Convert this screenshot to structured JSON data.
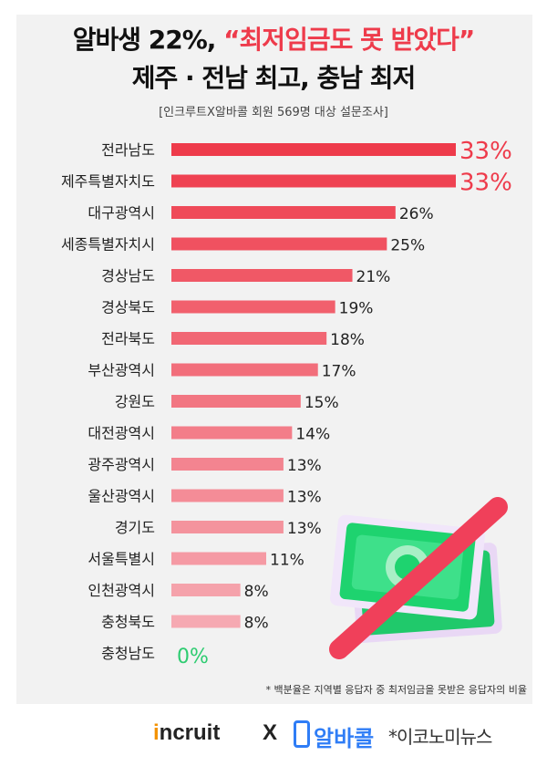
{
  "header": {
    "title_prefix": "알바생 22%, ",
    "title_highlight": "“최저임금도 못 받았다”",
    "subtitle": "제주 · 전남 최고, 충남 최저",
    "source": "[인크루트X알바콜 회원 569명 대상 설문조사]"
  },
  "footnote": "* 백분율은 지역별 응답자 중 최저임금을 못받은 응답자의 비율",
  "logos": {
    "incruit_dot": "i",
    "incruit": "ncruit",
    "x": "X",
    "albacall": "알바콜",
    "news": "*이코노미뉴스"
  },
  "colors": {
    "background": "#f2f2f2",
    "highlight": "#ee3b4b",
    "zero_label": "#2ecc71",
    "bar_top": "#ee3b4b",
    "bar_light": "#f6a9b2"
  },
  "chart_data": {
    "type": "bar",
    "orientation": "horizontal",
    "categories": [
      "전라남도",
      "제주특별자치도",
      "대구광역시",
      "세종특별자치시",
      "경상남도",
      "경상북도",
      "전라북도",
      "부산광역시",
      "강원도",
      "대전광역시",
      "광주광역시",
      "울산광역시",
      "경기도",
      "서울특별시",
      "인천광역시",
      "충청북도",
      "충청남도"
    ],
    "values": [
      33,
      33,
      26,
      25,
      21,
      19,
      18,
      17,
      15,
      14,
      13,
      13,
      13,
      11,
      8,
      8,
      0
    ],
    "labels": [
      "33%",
      "33%",
      "26%",
      "25%",
      "21%",
      "19%",
      "18%",
      "17%",
      "15%",
      "14%",
      "13%",
      "13%",
      "13%",
      "11%",
      "8%",
      "8%",
      "0%"
    ],
    "xlim": [
      0,
      33
    ],
    "unit": "%",
    "grid": false,
    "legend": "none"
  }
}
